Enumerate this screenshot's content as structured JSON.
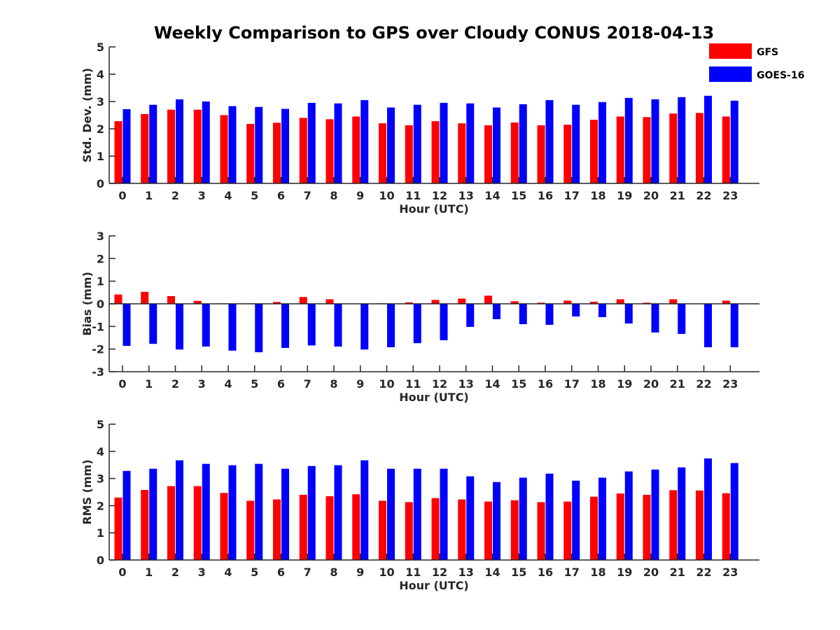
{
  "title": "Weekly Comparison to GPS over Cloudy CONUS 2018-04-13",
  "legend": {
    "placement": "top-right",
    "entries": [
      {
        "label": "GFS",
        "color": "#ff0000"
      },
      {
        "label": "GOES-16",
        "color": "#0000ff"
      }
    ]
  },
  "colors": {
    "axis": "#262626",
    "text": "#262626"
  },
  "chart_data": [
    {
      "type": "bar",
      "xlabel": "Hour (UTC)",
      "ylabel": "Std. Dev. (mm)",
      "ylim": [
        0,
        5
      ],
      "yticks": [
        0,
        1,
        2,
        3,
        4,
        5
      ],
      "categories": [
        "0",
        "1",
        "2",
        "3",
        "4",
        "5",
        "6",
        "7",
        "8",
        "9",
        "10",
        "11",
        "12",
        "13",
        "14",
        "15",
        "16",
        "17",
        "18",
        "19",
        "20",
        "21",
        "22",
        "23"
      ],
      "series": [
        {
          "name": "GFS",
          "color": "#ff0000",
          "values": [
            2.28,
            2.54,
            2.7,
            2.7,
            2.5,
            2.18,
            2.22,
            2.4,
            2.35,
            2.45,
            2.2,
            2.13,
            2.28,
            2.2,
            2.13,
            2.23,
            2.13,
            2.15,
            2.33,
            2.45,
            2.43,
            2.56,
            2.58,
            2.45
          ]
        },
        {
          "name": "GOES-16",
          "color": "#0000ff",
          "values": [
            2.72,
            2.88,
            3.08,
            3.0,
            2.83,
            2.8,
            2.73,
            2.95,
            2.93,
            3.05,
            2.78,
            2.88,
            2.95,
            2.93,
            2.78,
            2.9,
            3.05,
            2.88,
            2.98,
            3.13,
            3.08,
            3.16,
            3.21,
            3.03
          ]
        }
      ]
    },
    {
      "type": "bar",
      "xlabel": "Hour (UTC)",
      "ylabel": "Bias (mm)",
      "ylim": [
        -3,
        3
      ],
      "yticks": [
        -3,
        -2,
        -1,
        0,
        1,
        2,
        3
      ],
      "categories": [
        "0",
        "1",
        "2",
        "3",
        "4",
        "5",
        "6",
        "7",
        "8",
        "9",
        "10",
        "11",
        "12",
        "13",
        "14",
        "15",
        "16",
        "17",
        "18",
        "19",
        "20",
        "21",
        "22",
        "23"
      ],
      "series": [
        {
          "name": "GFS",
          "color": "#ff0000",
          "values": [
            0.41,
            0.53,
            0.34,
            0.13,
            0.02,
            0.02,
            0.08,
            0.3,
            0.2,
            0.0,
            0.02,
            0.06,
            0.17,
            0.23,
            0.36,
            0.11,
            0.05,
            0.14,
            0.09,
            0.2,
            0.05,
            0.2,
            0.0,
            0.14
          ]
        },
        {
          "name": "GOES-16",
          "color": "#0000ff",
          "values": [
            -1.86,
            -1.77,
            -2.02,
            -1.89,
            -2.07,
            -2.14,
            -1.95,
            -1.84,
            -1.89,
            -2.02,
            -1.92,
            -1.74,
            -1.61,
            -1.02,
            -0.68,
            -0.9,
            -0.93,
            -0.56,
            -0.59,
            -0.87,
            -1.27,
            -1.33,
            -1.92,
            -1.92
          ]
        }
      ]
    },
    {
      "type": "bar",
      "xlabel": "Hour (UTC)",
      "ylabel": "RMS (mm)",
      "ylim": [
        0,
        5
      ],
      "yticks": [
        0,
        1,
        2,
        3,
        4,
        5
      ],
      "categories": [
        "0",
        "1",
        "2",
        "3",
        "4",
        "5",
        "6",
        "7",
        "8",
        "9",
        "10",
        "11",
        "12",
        "13",
        "14",
        "15",
        "16",
        "17",
        "18",
        "19",
        "20",
        "21",
        "22",
        "23"
      ],
      "series": [
        {
          "name": "GFS",
          "color": "#ff0000",
          "values": [
            2.3,
            2.58,
            2.72,
            2.72,
            2.47,
            2.18,
            2.23,
            2.4,
            2.35,
            2.42,
            2.18,
            2.13,
            2.28,
            2.23,
            2.15,
            2.2,
            2.13,
            2.15,
            2.33,
            2.45,
            2.4,
            2.57,
            2.56,
            2.46
          ]
        },
        {
          "name": "GOES-16",
          "color": "#0000ff",
          "values": [
            3.28,
            3.36,
            3.67,
            3.54,
            3.49,
            3.54,
            3.36,
            3.46,
            3.49,
            3.67,
            3.36,
            3.36,
            3.36,
            3.08,
            2.87,
            3.03,
            3.18,
            2.92,
            3.03,
            3.26,
            3.33,
            3.41,
            3.74,
            3.57
          ]
        }
      ]
    }
  ]
}
